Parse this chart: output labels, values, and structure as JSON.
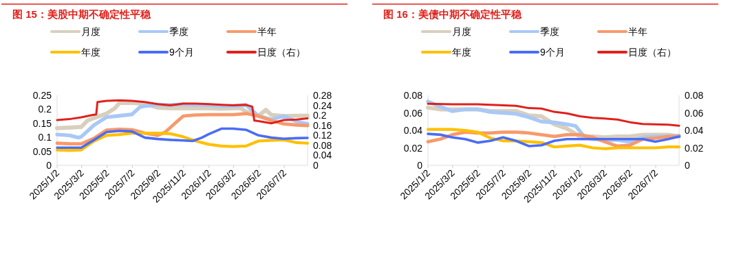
{
  "chart_data": [
    {
      "type": "line",
      "title": "图 15：美股中期不确定性平稳",
      "legend": "top",
      "grid": false,
      "xlim": [
        "2025-01-02",
        "2026-08-27"
      ],
      "xticks": [
        {
          "value": "2025-01-02",
          "label": "2025/1/2"
        },
        {
          "value": "2025-03-02",
          "label": "2025/3/2"
        },
        {
          "value": "2025-05-02",
          "label": "2025/5/2"
        },
        {
          "value": "2025-07-02",
          "label": "2025/7/2"
        },
        {
          "value": "2025-09-02",
          "label": "2025/9/2"
        },
        {
          "value": "2025-11-02",
          "label": "2025/11/2"
        },
        {
          "value": "2026-01-02",
          "label": "2026/1/2"
        },
        {
          "value": "2026-03-02",
          "label": "2026/3/2"
        },
        {
          "value": "2026-05-02",
          "label": "2026/5/2"
        },
        {
          "value": "2026-07-02",
          "label": "2026/7/2"
        }
      ],
      "ylim": [
        0,
        0.25
      ],
      "yticks": [
        0,
        0.05,
        0.1,
        0.15,
        0.2,
        0.25
      ],
      "y2lim": [
        0,
        0.28
      ],
      "y2ticks": [
        0,
        0.04,
        0.08,
        0.12,
        0.16,
        0.2,
        0.24,
        0.28
      ],
      "series": [
        {
          "name": "月度",
          "color": "#d9cfbd",
          "x": [
            "2025-01-02",
            "2025-02-01",
            "2025-03-01",
            "2025-03-16",
            "2025-04-01",
            "2025-05-01",
            "2025-05-21",
            "2025-06-01",
            "2025-07-01",
            "2025-08-01",
            "2025-09-01",
            "2025-10-01",
            "2025-11-01",
            "2025-12-01",
            "2026-01-01",
            "2026-02-01",
            "2026-03-01",
            "2026-03-20",
            "2026-04-01",
            "2026-05-01",
            "2026-05-19",
            "2026-06-01",
            "2026-07-01",
            "2026-08-01",
            "2026-08-27"
          ],
          "values": [
            0.133,
            0.135,
            0.137,
            0.16,
            0.169,
            0.185,
            0.204,
            0.223,
            0.223,
            0.22,
            0.206,
            0.204,
            0.204,
            0.204,
            0.204,
            0.202,
            0.204,
            0.204,
            0.192,
            0.177,
            0.198,
            0.18,
            0.176,
            0.177,
            0.177
          ]
        },
        {
          "name": "季度",
          "color": "#a9c8f5",
          "x": [
            "2025-01-02",
            "2025-02-01",
            "2025-02-22",
            "2025-03-01",
            "2025-04-01",
            "2025-05-01",
            "2025-06-01",
            "2025-07-01",
            "2025-07-20",
            "2025-08-01",
            "2025-09-01",
            "2025-10-01",
            "2025-11-01",
            "2025-12-01",
            "2026-01-01",
            "2026-02-01",
            "2026-03-01",
            "2026-04-01",
            "2026-05-01",
            "2026-06-01",
            "2026-07-01",
            "2026-08-01",
            "2026-08-27"
          ],
          "values": [
            0.11,
            0.107,
            0.099,
            0.102,
            0.144,
            0.172,
            0.177,
            0.182,
            0.208,
            0.212,
            0.216,
            0.216,
            0.218,
            0.216,
            0.215,
            0.212,
            0.212,
            0.216,
            0.176,
            0.164,
            0.176,
            0.156,
            0.148
          ]
        },
        {
          "name": "半年",
          "color": "#f79a6b",
          "x": [
            "2025-01-02",
            "2025-02-01",
            "2025-03-01",
            "2025-04-01",
            "2025-05-01",
            "2025-06-01",
            "2025-07-01",
            "2025-08-01",
            "2025-09-01",
            "2025-09-19",
            "2025-10-01",
            "2025-11-01",
            "2025-12-01",
            "2026-01-01",
            "2026-02-01",
            "2026-03-01",
            "2026-04-01",
            "2026-05-01",
            "2026-06-01",
            "2026-07-01",
            "2026-08-01",
            "2026-08-27"
          ],
          "values": [
            0.079,
            0.077,
            0.077,
            0.097,
            0.126,
            0.129,
            0.127,
            0.115,
            0.107,
            0.119,
            0.135,
            0.176,
            0.18,
            0.181,
            0.181,
            0.181,
            0.185,
            0.176,
            0.16,
            0.148,
            0.144,
            0.142
          ]
        },
        {
          "name": "年度",
          "color": "#ffc000",
          "x": [
            "2025-01-02",
            "2025-02-01",
            "2025-03-01",
            "2025-04-01",
            "2025-05-01",
            "2025-06-01",
            "2025-07-01",
            "2025-08-01",
            "2025-09-01",
            "2025-10-01",
            "2025-11-01",
            "2025-12-01",
            "2026-01-01",
            "2026-02-01",
            "2026-03-01",
            "2026-04-01",
            "2026-05-01",
            "2026-06-01",
            "2026-07-01",
            "2026-08-01",
            "2026-08-27"
          ],
          "values": [
            0.055,
            0.053,
            0.055,
            0.087,
            0.107,
            0.11,
            0.115,
            0.115,
            0.115,
            0.113,
            0.102,
            0.087,
            0.075,
            0.069,
            0.067,
            0.069,
            0.087,
            0.089,
            0.091,
            0.081,
            0.079
          ]
        },
        {
          "name": "9个月",
          "color": "#4a6cf7",
          "x": [
            "2025-01-02",
            "2025-02-01",
            "2025-03-01",
            "2025-04-01",
            "2025-05-01",
            "2025-06-01",
            "2025-07-01",
            "2025-08-01",
            "2025-09-01",
            "2025-10-01",
            "2025-11-01",
            "2025-11-24",
            "2025-12-16",
            "2026-01-01",
            "2026-02-01",
            "2026-03-01",
            "2026-04-01",
            "2026-05-01",
            "2026-06-01",
            "2026-07-01",
            "2026-08-01",
            "2026-08-27"
          ],
          "values": [
            0.063,
            0.063,
            0.063,
            0.091,
            0.119,
            0.123,
            0.121,
            0.099,
            0.094,
            0.091,
            0.089,
            0.087,
            0.099,
            0.111,
            0.131,
            0.131,
            0.127,
            0.107,
            0.099,
            0.095,
            0.097,
            0.098
          ]
        },
        {
          "name": "日度（右）",
          "color": "#e0201b",
          "axis": "y2",
          "x": [
            "2025-01-02",
            "2025-02-01",
            "2025-03-01",
            "2025-03-27",
            "2025-04-06",
            "2025-04-09",
            "2025-05-01",
            "2025-06-01",
            "2025-07-01",
            "2025-08-01",
            "2025-09-01",
            "2025-10-01",
            "2025-11-01",
            "2025-12-01",
            "2026-01-01",
            "2026-02-01",
            "2026-03-01",
            "2026-04-01",
            "2026-04-16",
            "2026-04-21",
            "2026-05-01",
            "2026-06-01",
            "2026-07-01",
            "2026-08-01",
            "2026-08-27"
          ],
          "values": [
            0.181,
            0.185,
            0.192,
            0.201,
            0.204,
            0.253,
            0.258,
            0.26,
            0.258,
            0.253,
            0.245,
            0.24,
            0.247,
            0.247,
            0.245,
            0.242,
            0.24,
            0.242,
            0.235,
            0.179,
            0.177,
            0.168,
            0.181,
            0.183,
            0.188
          ]
        }
      ]
    },
    {
      "type": "line",
      "title": "图 16：美债中期不确定性平稳",
      "legend": "top",
      "grid": false,
      "xlim": [
        "2025-01-02",
        "2026-08-27"
      ],
      "xticks": [
        {
          "value": "2025-01-02",
          "label": "2025/1/2"
        },
        {
          "value": "2025-03-02",
          "label": "2025/3/2"
        },
        {
          "value": "2025-05-02",
          "label": "2025/5/2"
        },
        {
          "value": "2025-07-02",
          "label": "2025/7/2"
        },
        {
          "value": "2025-09-02",
          "label": "2025/9/2"
        },
        {
          "value": "2025-11-02",
          "label": "2025/11/2"
        },
        {
          "value": "2026-01-02",
          "label": "2026/1/2"
        },
        {
          "value": "2026-03-02",
          "label": "2026/3/2"
        },
        {
          "value": "2026-05-02",
          "label": "2026/5/2"
        },
        {
          "value": "2026-07-02",
          "label": "2026/7/2"
        }
      ],
      "ylim": [
        0,
        0.08
      ],
      "yticks": [
        0,
        0.02,
        0.04,
        0.06,
        0.08
      ],
      "y2lim": [
        0,
        0.08
      ],
      "y2ticks": [
        0,
        0.02,
        0.04,
        0.06,
        0.08
      ],
      "series": [
        {
          "name": "月度",
          "color": "#d9cfbd",
          "x": [
            "2025-01-02",
            "2025-02-01",
            "2025-03-01",
            "2025-05-01",
            "2025-06-01",
            "2025-07-01",
            "2025-08-01",
            "2025-09-01",
            "2025-10-01",
            "2025-11-01",
            "2025-12-01",
            "2026-01-01",
            "2026-02-01",
            "2026-03-01",
            "2026-04-01",
            "2026-05-01",
            "2026-06-01",
            "2026-07-01",
            "2026-08-01",
            "2026-08-27"
          ],
          "values": [
            0.066,
            0.064,
            0.064,
            0.064,
            0.062,
            0.062,
            0.062,
            0.057,
            0.056,
            0.047,
            0.042,
            0.033,
            0.033,
            0.032,
            0.033,
            0.033,
            0.035,
            0.035,
            0.035,
            0.033
          ]
        },
        {
          "name": "季度",
          "color": "#a9c8f5",
          "x": [
            "2025-01-02",
            "2025-02-01",
            "2025-03-01",
            "2025-04-01",
            "2025-05-01",
            "2025-06-01",
            "2025-07-01",
            "2025-08-01",
            "2025-09-01",
            "2025-10-01",
            "2025-11-01",
            "2025-12-01",
            "2025-12-22",
            "2026-01-13",
            "2026-02-01",
            "2026-03-01",
            "2026-04-01",
            "2026-05-01",
            "2026-06-01",
            "2026-07-01",
            "2026-08-01",
            "2026-08-27"
          ],
          "values": [
            0.073,
            0.067,
            0.062,
            0.064,
            0.064,
            0.061,
            0.06,
            0.059,
            0.055,
            0.05,
            0.049,
            0.047,
            0.045,
            0.032,
            0.03,
            0.029,
            0.029,
            0.027,
            0.032,
            0.033,
            0.033,
            0.034
          ]
        },
        {
          "name": "半年",
          "color": "#f79a6b",
          "x": [
            "2025-01-02",
            "2025-02-01",
            "2025-03-01",
            "2025-04-01",
            "2025-05-01",
            "2025-06-01",
            "2025-07-01",
            "2025-08-01",
            "2025-09-01",
            "2025-10-01",
            "2025-11-01",
            "2025-12-01",
            "2026-01-01",
            "2026-02-01",
            "2026-03-01",
            "2026-04-01",
            "2026-05-01",
            "2026-06-01",
            "2026-07-01",
            "2026-08-01",
            "2026-08-27"
          ],
          "values": [
            0.027,
            0.03,
            0.035,
            0.038,
            0.037,
            0.037,
            0.038,
            0.038,
            0.037,
            0.035,
            0.033,
            0.035,
            0.035,
            0.032,
            0.027,
            0.022,
            0.023,
            0.03,
            0.031,
            0.033,
            0.033
          ]
        },
        {
          "name": "年度",
          "color": "#ffc000",
          "x": [
            "2025-01-02",
            "2025-02-01",
            "2025-03-01",
            "2025-04-01",
            "2025-05-01",
            "2025-06-01",
            "2025-07-01",
            "2025-08-01",
            "2025-09-01",
            "2025-10-01",
            "2025-11-01",
            "2025-12-01",
            "2026-01-01",
            "2026-02-01",
            "2026-03-01",
            "2026-04-01",
            "2026-05-01",
            "2026-06-01",
            "2026-07-01",
            "2026-08-01",
            "2026-08-27"
          ],
          "values": [
            0.041,
            0.041,
            0.041,
            0.04,
            0.038,
            0.031,
            0.028,
            0.028,
            0.027,
            0.026,
            0.021,
            0.022,
            0.023,
            0.02,
            0.019,
            0.02,
            0.02,
            0.02,
            0.02,
            0.021,
            0.021
          ]
        },
        {
          "name": "9个月",
          "color": "#4a6cf7",
          "x": [
            "2025-01-02",
            "2025-02-01",
            "2025-03-01",
            "2025-04-01",
            "2025-05-01",
            "2025-06-01",
            "2025-07-01",
            "2025-08-01",
            "2025-09-01",
            "2025-10-01",
            "2025-11-01",
            "2025-12-01",
            "2026-01-01",
            "2026-02-01",
            "2026-03-01",
            "2026-04-01",
            "2026-05-01",
            "2026-06-01",
            "2026-07-01",
            "2026-08-01",
            "2026-08-27"
          ],
          "values": [
            0.036,
            0.035,
            0.032,
            0.03,
            0.026,
            0.028,
            0.032,
            0.028,
            0.022,
            0.023,
            0.028,
            0.03,
            0.03,
            0.03,
            0.03,
            0.03,
            0.03,
            0.03,
            0.027,
            0.03,
            0.033
          ]
        },
        {
          "name": "日度（右）",
          "color": "#e0201b",
          "axis": "y2",
          "x": [
            "2025-01-02",
            "2025-03-01",
            "2025-05-01",
            "2025-07-01",
            "2025-08-01",
            "2025-09-01",
            "2025-10-01",
            "2025-11-01",
            "2025-12-01",
            "2026-01-01",
            "2026-02-01",
            "2026-03-01",
            "2026-04-01",
            "2026-05-01",
            "2026-06-01",
            "2026-07-01",
            "2026-08-01",
            "2026-08-27"
          ],
          "values": [
            0.0704,
            0.0699,
            0.0699,
            0.0687,
            0.068,
            0.0654,
            0.0649,
            0.0611,
            0.0594,
            0.0561,
            0.0543,
            0.0536,
            0.0523,
            0.0493,
            0.0473,
            0.0468,
            0.0465,
            0.0453
          ]
        }
      ]
    }
  ]
}
